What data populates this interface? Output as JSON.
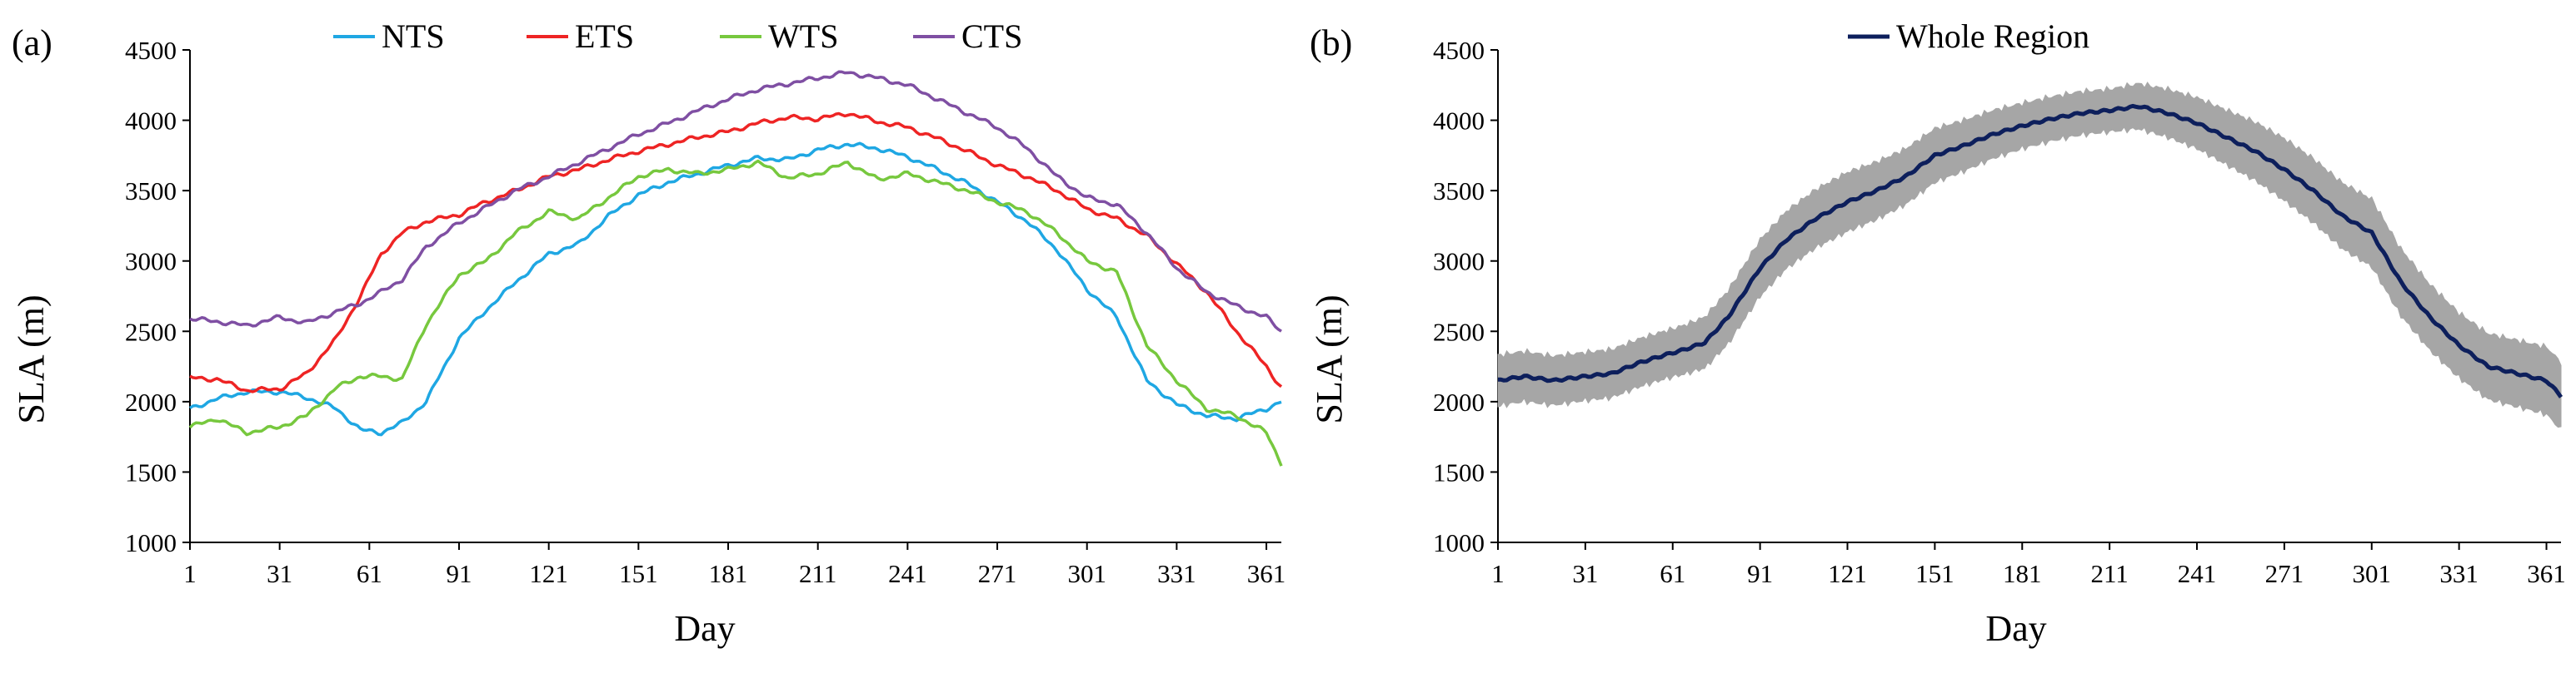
{
  "chart_data": [
    {
      "type": "line",
      "panel_label": "(a)",
      "xlabel": "Day",
      "ylabel": "SLA (m)",
      "xlim": [
        1,
        366
      ],
      "ylim": [
        1000,
        4500
      ],
      "x_ticks": [
        1,
        31,
        61,
        91,
        121,
        151,
        181,
        211,
        241,
        271,
        301,
        331,
        361
      ],
      "y_ticks": [
        1000,
        1500,
        2000,
        2500,
        3000,
        3500,
        4000,
        4500
      ],
      "grid": false,
      "legend_position": "top",
      "series": [
        {
          "name": "NTS",
          "color": "#1fa7e3",
          "points": [
            [
              1,
              1950
            ],
            [
              10,
              2020
            ],
            [
              20,
              2070
            ],
            [
              31,
              2070
            ],
            [
              40,
              2030
            ],
            [
              50,
              1950
            ],
            [
              58,
              1800
            ],
            [
              65,
              1780
            ],
            [
              72,
              1850
            ],
            [
              80,
              2000
            ],
            [
              91,
              2450
            ],
            [
              100,
              2650
            ],
            [
              110,
              2850
            ],
            [
              121,
              3050
            ],
            [
              131,
              3120
            ],
            [
              141,
              3320
            ],
            [
              151,
              3470
            ],
            [
              161,
              3560
            ],
            [
              171,
              3620
            ],
            [
              181,
              3680
            ],
            [
              191,
              3730
            ],
            [
              201,
              3720
            ],
            [
              211,
              3790
            ],
            [
              221,
              3830
            ],
            [
              231,
              3800
            ],
            [
              241,
              3740
            ],
            [
              251,
              3650
            ],
            [
              261,
              3550
            ],
            [
              271,
              3420
            ],
            [
              281,
              3280
            ],
            [
              291,
              3080
            ],
            [
              301,
              2800
            ],
            [
              311,
              2600
            ],
            [
              321,
              2150
            ],
            [
              331,
              1980
            ],
            [
              341,
              1900
            ],
            [
              351,
              1880
            ],
            [
              361,
              1950
            ],
            [
              366,
              2000
            ]
          ]
        },
        {
          "name": "ETS",
          "color": "#ee2424",
          "points": [
            [
              1,
              2170
            ],
            [
              10,
              2160
            ],
            [
              20,
              2080
            ],
            [
              31,
              2090
            ],
            [
              40,
              2200
            ],
            [
              50,
              2450
            ],
            [
              58,
              2750
            ],
            [
              65,
              3050
            ],
            [
              72,
              3200
            ],
            [
              80,
              3280
            ],
            [
              91,
              3330
            ],
            [
              100,
              3420
            ],
            [
              110,
              3500
            ],
            [
              121,
              3600
            ],
            [
              131,
              3650
            ],
            [
              141,
              3720
            ],
            [
              151,
              3780
            ],
            [
              161,
              3830
            ],
            [
              171,
              3880
            ],
            [
              181,
              3920
            ],
            [
              191,
              3980
            ],
            [
              201,
              4020
            ],
            [
              211,
              4010
            ],
            [
              221,
              4050
            ],
            [
              231,
              3990
            ],
            [
              241,
              3950
            ],
            [
              251,
              3870
            ],
            [
              261,
              3780
            ],
            [
              271,
              3680
            ],
            [
              281,
              3600
            ],
            [
              291,
              3500
            ],
            [
              301,
              3370
            ],
            [
              311,
              3300
            ],
            [
              321,
              3180
            ],
            [
              331,
              2980
            ],
            [
              341,
              2780
            ],
            [
              351,
              2500
            ],
            [
              361,
              2250
            ],
            [
              366,
              2100
            ]
          ]
        },
        {
          "name": "WTS",
          "color": "#77c83e",
          "points": [
            [
              1,
              1820
            ],
            [
              10,
              1880
            ],
            [
              20,
              1780
            ],
            [
              31,
              1820
            ],
            [
              40,
              1900
            ],
            [
              50,
              2100
            ],
            [
              58,
              2180
            ],
            [
              65,
              2180
            ],
            [
              72,
              2160
            ],
            [
              80,
              2550
            ],
            [
              91,
              2900
            ],
            [
              100,
              3000
            ],
            [
              110,
              3200
            ],
            [
              121,
              3350
            ],
            [
              131,
              3300
            ],
            [
              141,
              3450
            ],
            [
              151,
              3600
            ],
            [
              161,
              3650
            ],
            [
              171,
              3620
            ],
            [
              181,
              3650
            ],
            [
              191,
              3700
            ],
            [
              201,
              3590
            ],
            [
              211,
              3620
            ],
            [
              221,
              3700
            ],
            [
              231,
              3580
            ],
            [
              241,
              3620
            ],
            [
              251,
              3560
            ],
            [
              261,
              3500
            ],
            [
              271,
              3420
            ],
            [
              281,
              3350
            ],
            [
              291,
              3200
            ],
            [
              301,
              3000
            ],
            [
              311,
              2920
            ],
            [
              321,
              2400
            ],
            [
              331,
              2150
            ],
            [
              341,
              1950
            ],
            [
              351,
              1900
            ],
            [
              361,
              1780
            ],
            [
              366,
              1560
            ]
          ]
        },
        {
          "name": "CTS",
          "color": "#7f4fa3",
          "points": [
            [
              1,
              2590
            ],
            [
              10,
              2570
            ],
            [
              20,
              2540
            ],
            [
              31,
              2600
            ],
            [
              40,
              2560
            ],
            [
              50,
              2640
            ],
            [
              58,
              2700
            ],
            [
              65,
              2780
            ],
            [
              72,
              2870
            ],
            [
              80,
              3100
            ],
            [
              91,
              3270
            ],
            [
              100,
              3380
            ],
            [
              110,
              3500
            ],
            [
              121,
              3600
            ],
            [
              131,
              3700
            ],
            [
              141,
              3800
            ],
            [
              151,
              3900
            ],
            [
              161,
              3980
            ],
            [
              171,
              4070
            ],
            [
              181,
              4150
            ],
            [
              191,
              4220
            ],
            [
              201,
              4260
            ],
            [
              211,
              4300
            ],
            [
              221,
              4340
            ],
            [
              231,
              4300
            ],
            [
              241,
              4250
            ],
            [
              251,
              4150
            ],
            [
              261,
              4050
            ],
            [
              271,
              3950
            ],
            [
              281,
              3800
            ],
            [
              291,
              3600
            ],
            [
              301,
              3450
            ],
            [
              311,
              3400
            ],
            [
              321,
              3200
            ],
            [
              331,
              2950
            ],
            [
              341,
              2780
            ],
            [
              351,
              2680
            ],
            [
              361,
              2600
            ],
            [
              366,
              2500
            ]
          ]
        }
      ]
    },
    {
      "type": "line",
      "panel_label": "(b)",
      "xlabel": "Day",
      "ylabel": "SLA (m)",
      "xlim": [
        1,
        366
      ],
      "ylim": [
        1000,
        4500
      ],
      "x_ticks": [
        1,
        31,
        61,
        91,
        121,
        151,
        181,
        211,
        241,
        271,
        301,
        331,
        361
      ],
      "y_ticks": [
        1000,
        1500,
        2000,
        2500,
        3000,
        3500,
        4000,
        4500
      ],
      "grid": false,
      "legend_position": "top",
      "error_band": true,
      "band_color": "#a6a6a6",
      "series": [
        {
          "name": "Whole Region",
          "color": "#0d1f5c",
          "points": [
            [
              1,
              2150
            ],
            [
              10,
              2180
            ],
            [
              20,
              2150
            ],
            [
              31,
              2180
            ],
            [
              40,
              2200
            ],
            [
              50,
              2280
            ],
            [
              58,
              2330
            ],
            [
              65,
              2370
            ],
            [
              72,
              2420
            ],
            [
              80,
              2600
            ],
            [
              91,
              2950
            ],
            [
              100,
              3150
            ],
            [
              110,
              3300
            ],
            [
              121,
              3420
            ],
            [
              131,
              3500
            ],
            [
              141,
              3600
            ],
            [
              151,
              3750
            ],
            [
              161,
              3820
            ],
            [
              171,
              3900
            ],
            [
              181,
              3960
            ],
            [
              191,
              4010
            ],
            [
              201,
              4050
            ],
            [
              211,
              4070
            ],
            [
              221,
              4100
            ],
            [
              231,
              4050
            ],
            [
              241,
              3980
            ],
            [
              251,
              3880
            ],
            [
              261,
              3780
            ],
            [
              271,
              3650
            ],
            [
              281,
              3500
            ],
            [
              291,
              3320
            ],
            [
              301,
              3200
            ],
            [
              311,
              2850
            ],
            [
              321,
              2600
            ],
            [
              331,
              2400
            ],
            [
              341,
              2250
            ],
            [
              351,
              2200
            ],
            [
              361,
              2150
            ],
            [
              366,
              2040
            ]
          ],
          "error": [
            [
              1,
              180
            ],
            [
              31,
              170
            ],
            [
              61,
              170
            ],
            [
              91,
              200
            ],
            [
              121,
              210
            ],
            [
              151,
              190
            ],
            [
              181,
              160
            ],
            [
              211,
              150
            ],
            [
              241,
              180
            ],
            [
              271,
              220
            ],
            [
              301,
              240
            ],
            [
              331,
              230
            ],
            [
              366,
              240
            ]
          ]
        }
      ]
    }
  ]
}
